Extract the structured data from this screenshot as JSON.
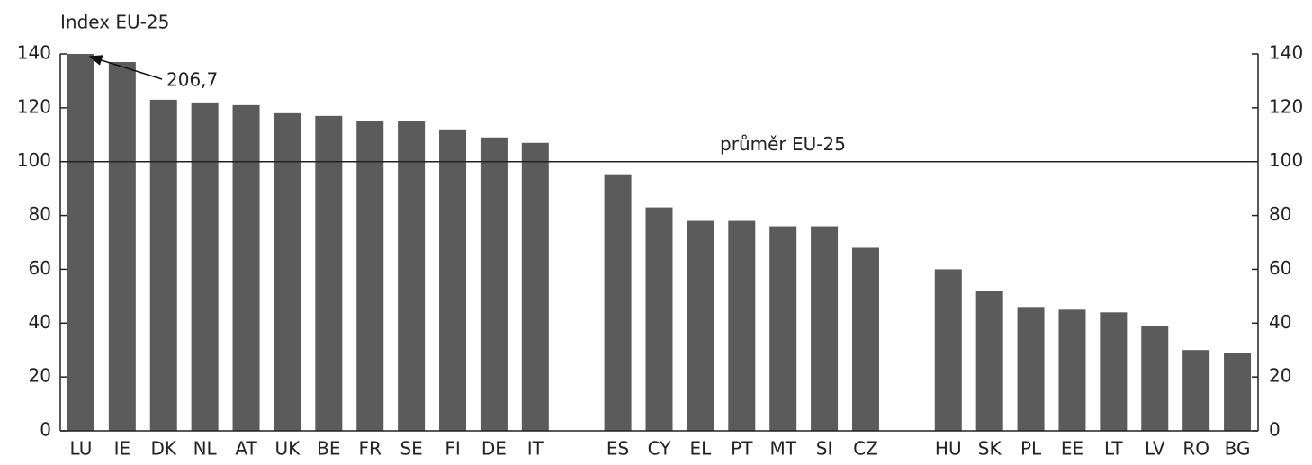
{
  "chart_data": {
    "type": "bar",
    "y_axis_label": "Index EU-25",
    "categories": [
      "LU",
      "IE",
      "DK",
      "NL",
      "AT",
      "UK",
      "BE",
      "FR",
      "SE",
      "FI",
      "DE",
      "IT",
      null,
      "ES",
      "CY",
      "EL",
      "PT",
      "MT",
      "SI",
      "CZ",
      null,
      "HU",
      "SK",
      "PL",
      "EE",
      "LT",
      "LV",
      "RO",
      "BG"
    ],
    "values": [
      206.7,
      137,
      123,
      122,
      121,
      118,
      117,
      115,
      115,
      112,
      109,
      107,
      null,
      95,
      83,
      78,
      78,
      76,
      76,
      68,
      null,
      60,
      52,
      46,
      45,
      44,
      39,
      30,
      29
    ],
    "value_labels": [
      "206,7",
      null,
      null,
      null,
      null,
      null,
      null,
      null,
      null,
      null,
      null,
      null,
      null,
      null,
      null,
      null,
      null,
      null,
      null,
      null,
      null,
      null,
      null,
      null,
      null,
      null,
      null,
      null,
      null
    ],
    "color": "#5b5b5b",
    "ylim": [
      0,
      140
    ],
    "yticks": [
      0,
      20,
      40,
      60,
      80,
      100,
      120,
      140
    ],
    "y2lim": [
      0,
      140
    ],
    "y2ticks": [
      0,
      20,
      40,
      60,
      80,
      100,
      120,
      140
    ],
    "reference_line": {
      "value": 100,
      "label": "průměr EU-25"
    }
  }
}
